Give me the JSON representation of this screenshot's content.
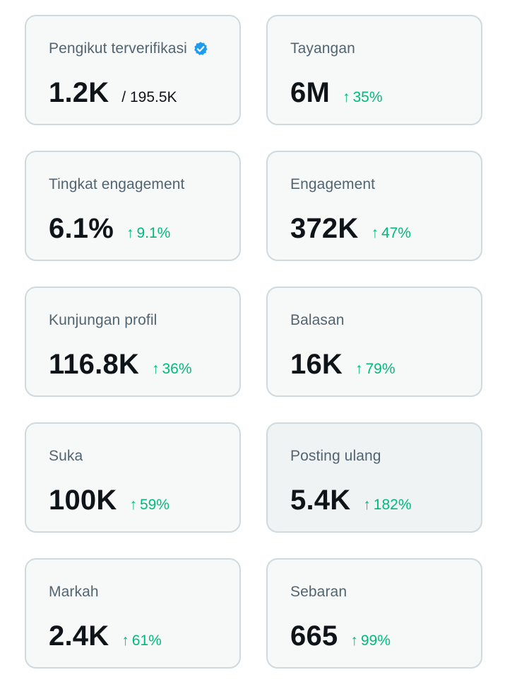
{
  "colors": {
    "card_background": "#f7f9f9",
    "card_background_hover": "#eff3f4",
    "card_border": "#cfd9de",
    "label": "#536471",
    "value": "#0f1419",
    "trend_up": "#00ba7c",
    "verified_badge": "#1d9bf0"
  },
  "trend_icon": "arrow-up-icon",
  "cards": [
    {
      "label": "Pengikut terverifikasi",
      "value": "1.2K",
      "denominator": "/ 195.5K",
      "icon": "verified-badge-icon"
    },
    {
      "label": "Tayangan",
      "value": "6M",
      "trend": "35%"
    },
    {
      "label": "Tingkat engagement",
      "value": "6.1%",
      "trend": "9.1%"
    },
    {
      "label": "Engagement",
      "value": "372K",
      "trend": "47%"
    },
    {
      "label": "Kunjungan profil",
      "value": "116.8K",
      "trend": "36%"
    },
    {
      "label": "Balasan",
      "value": "16K",
      "trend": "79%"
    },
    {
      "label": "Suka",
      "value": "100K",
      "trend": "59%"
    },
    {
      "label": "Posting ulang",
      "value": "5.4K",
      "trend": "182%"
    },
    {
      "label": "Markah",
      "value": "2.4K",
      "trend": "61%"
    },
    {
      "label": "Sebaran",
      "value": "665",
      "trend": "99%"
    }
  ]
}
